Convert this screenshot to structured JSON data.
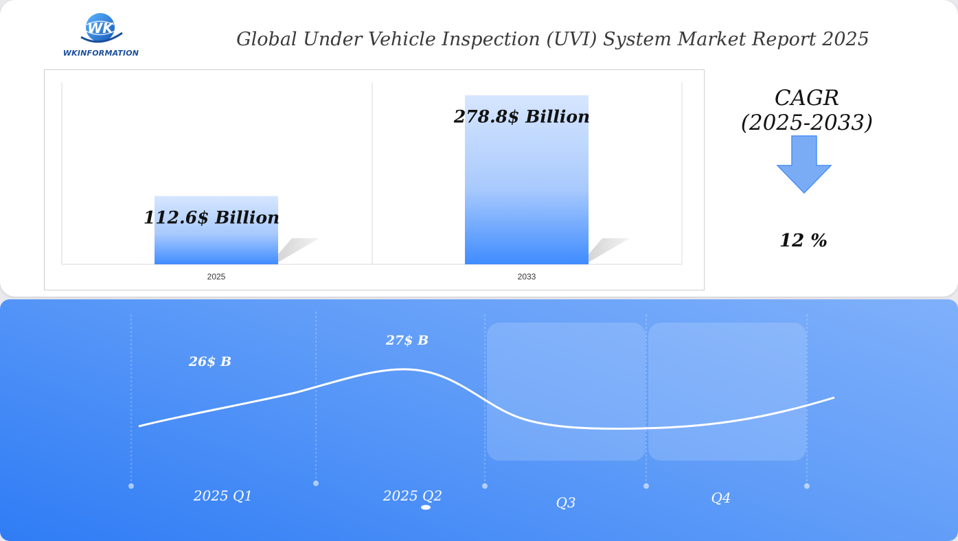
{
  "header": {
    "logo_text": "WKINFORMATION",
    "title": "Global Under Vehicle Inspection (UVI) System Market Report 2025"
  },
  "cagr": {
    "label_line1": "CAGR",
    "label_line2": "(2025-2033)",
    "value": "12 %"
  },
  "colors": {
    "bar_top": "#d6e6ff",
    "bar_bottom": "#3f8cff",
    "arrow": "#7aacf5",
    "panel_accent": "#4a8ef7"
  },
  "chart_data": [
    {
      "type": "bar",
      "categories": [
        "2025",
        "2033"
      ],
      "values": [
        112.6,
        278.8
      ],
      "data_labels": [
        "112.6$ Billion",
        "278.8$ Billion"
      ],
      "ylim": [
        0,
        300
      ],
      "grid": false
    },
    {
      "type": "line",
      "categories": [
        "2025 Q1",
        "2025 Q2",
        "Q3",
        "Q4"
      ],
      "values": [
        26,
        27,
        25.5,
        26
      ],
      "data_labels": [
        "26$ B",
        "27$ B",
        "",
        ""
      ],
      "grid": false
    }
  ]
}
